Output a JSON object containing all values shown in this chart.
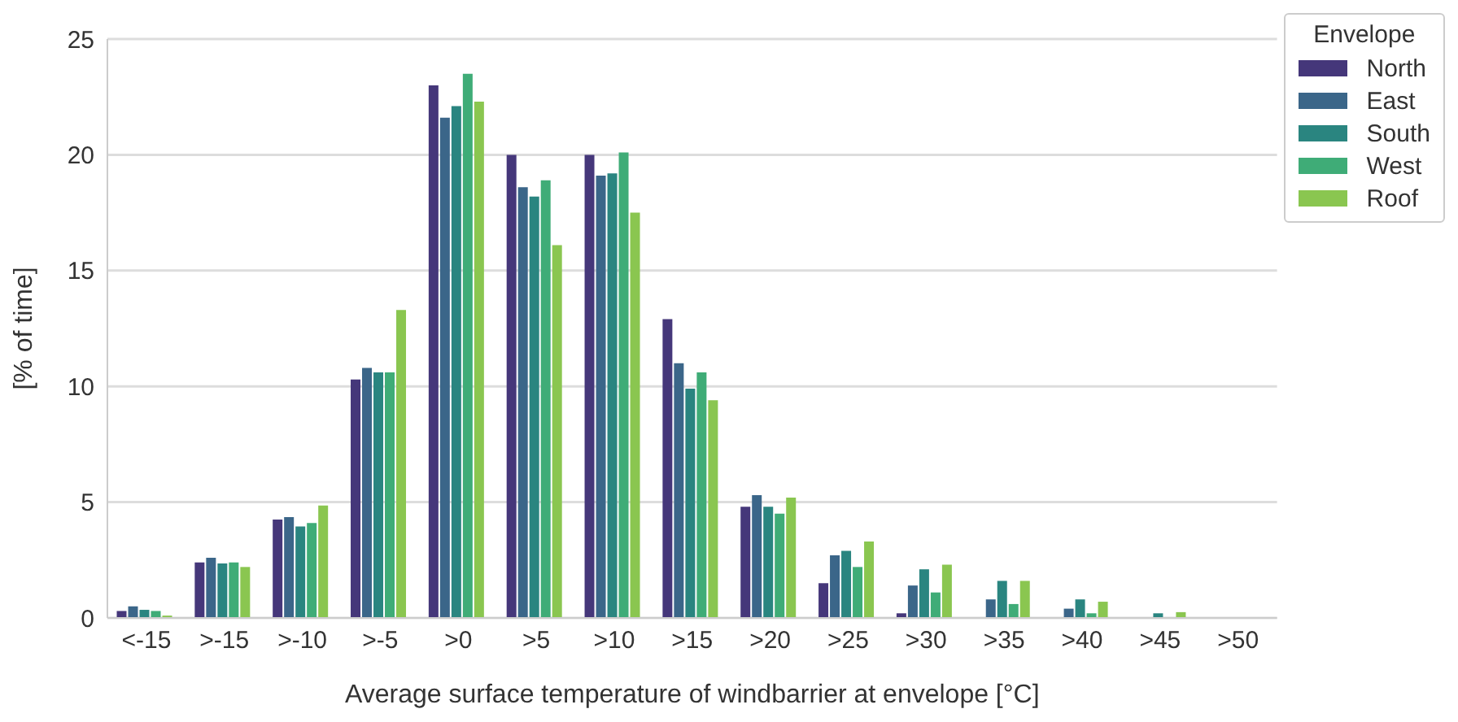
{
  "chart_data": {
    "type": "bar",
    "xlabel": "Average surface temperature of windbarrier at envelope [°C]",
    "ylabel": "[% of time]",
    "legend_title": "Envelope",
    "categories": [
      "<-15",
      ">-15",
      ">-10",
      ">-5",
      ">0",
      ">5",
      ">10",
      ">15",
      ">20",
      ">25",
      ">30",
      ">35",
      ">40",
      ">45",
      ">50"
    ],
    "series": [
      {
        "name": "North",
        "color": "#45377a",
        "values": [
          0.3,
          2.4,
          4.25,
          10.3,
          23,
          20,
          20,
          12.9,
          4.8,
          1.5,
          0.2,
          0,
          0,
          0,
          0
        ]
      },
      {
        "name": "East",
        "color": "#3b6689",
        "values": [
          0.5,
          2.6,
          4.35,
          10.8,
          21.6,
          18.6,
          19.1,
          11,
          5.3,
          2.7,
          1.4,
          0.8,
          0.4,
          0,
          0
        ]
      },
      {
        "name": "South",
        "color": "#2a8580",
        "values": [
          0.35,
          2.35,
          3.95,
          10.6,
          22.1,
          18.2,
          19.2,
          9.9,
          4.8,
          2.9,
          2.1,
          1.6,
          0.8,
          0.2,
          0
        ]
      },
      {
        "name": "West",
        "color": "#3fac77",
        "values": [
          0.3,
          2.4,
          4.1,
          10.6,
          23.5,
          18.9,
          20.1,
          10.6,
          4.5,
          2.2,
          1.1,
          0.6,
          0.2,
          0,
          0
        ]
      },
      {
        "name": "Roof",
        "color": "#8ac650",
        "values": [
          0.1,
          2.2,
          4.85,
          13.3,
          22.3,
          16.1,
          17.5,
          9.4,
          5.2,
          3.3,
          2.3,
          1.6,
          0.7,
          0.25,
          0
        ]
      }
    ],
    "ylim": [
      0,
      25
    ],
    "yticks": [
      0,
      5,
      10,
      15,
      20,
      25
    ],
    "grid": "y",
    "legend": "top right"
  }
}
